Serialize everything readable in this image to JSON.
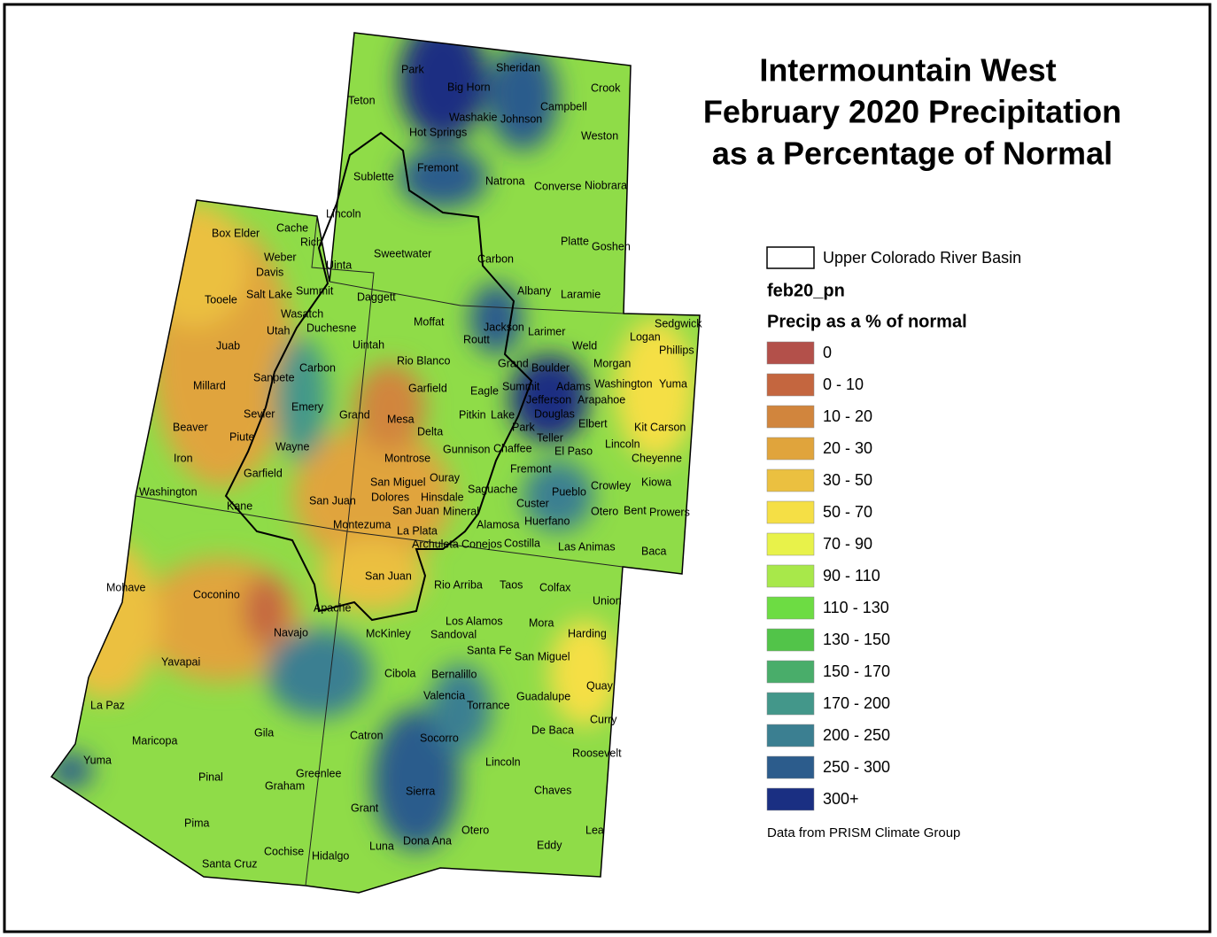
{
  "map": {
    "title": [
      "Intermountain West",
      "February 2020 Precipitation",
      "as a Percentage of Normal"
    ],
    "legend": {
      "basin_label": "Upper Colorado River Basin",
      "field_name": "feb20_pn",
      "heading": "Precip as a % of normal",
      "classes": [
        {
          "label": "0",
          "color": "#b3504a"
        },
        {
          "label": "0 - 10",
          "color": "#c4663f"
        },
        {
          "label": "10 - 20",
          "color": "#d1853d"
        },
        {
          "label": "20 - 30",
          "color": "#e0a43c"
        },
        {
          "label": "30 - 50",
          "color": "#ebc040"
        },
        {
          "label": "50 - 70",
          "color": "#f5df45"
        },
        {
          "label": "70 - 90",
          "color": "#e8f24a"
        },
        {
          "label": "90 - 110",
          "color": "#a8e84a"
        },
        {
          "label": "110 - 130",
          "color": "#6ddc43"
        },
        {
          "label": "130 - 150",
          "color": "#52c449"
        },
        {
          "label": "150 - 170",
          "color": "#49ad6a"
        },
        {
          "label": "170 - 200",
          "color": "#43978a"
        },
        {
          "label": "200 - 250",
          "color": "#3b7f91"
        },
        {
          "label": "250 - 300",
          "color": "#2c5c8c"
        },
        {
          "label": "300+",
          "color": "#1a2f82"
        }
      ]
    },
    "source": "Data from PRISM Climate Group",
    "county_labels": [
      "Park",
      "Big Horn",
      "Sheridan",
      "Crook",
      "Teton",
      "Washakie",
      "Johnson",
      "Campbell",
      "Hot Springs",
      "Weston",
      "Fremont",
      "Sublette",
      "Natrona",
      "Converse",
      "Niobrara",
      "Lincoln",
      "Sweetwater",
      "Carbon",
      "Platte",
      "Goshen",
      "Uinta",
      "Albany",
      "Laramie",
      "Box Elder",
      "Cache",
      "Rich",
      "Weber",
      "Davis",
      "Tooele",
      "Salt Lake",
      "Summit",
      "Daggett",
      "Wasatch",
      "Duchesne",
      "Utah",
      "Uintah",
      "Juab",
      "Millard",
      "Carbon",
      "Sanpete",
      "Emery",
      "Grand",
      "Sevier",
      "Beaver",
      "Piute",
      "Wayne",
      "Iron",
      "Garfield",
      "Washington",
      "Kane",
      "San Juan",
      "Moffat",
      "Jackson",
      "Larimer",
      "Sedgwick",
      "Logan",
      "Phillips",
      "Weld",
      "Routt",
      "Rio Blanco",
      "Grand",
      "Boulder",
      "Morgan",
      "Garfield",
      "Eagle",
      "Summit",
      "Adams",
      "Washington",
      "Yuma",
      "Jefferson",
      "Arapahoe",
      "Mesa",
      "Pitkin",
      "Lake",
      "Douglas",
      "Elbert",
      "Delta",
      "Park",
      "Teller",
      "Kit Carson",
      "Lincoln",
      "Gunnison",
      "Chaffee",
      "El Paso",
      "Montrose",
      "Cheyenne",
      "Fremont",
      "Ouray",
      "San Miguel",
      "Saguache",
      "Crowley",
      "Kiowa",
      "Pueblo",
      "Dolores",
      "Hinsdale",
      "San Juan",
      "Mineral",
      "Custer",
      "Otero",
      "Bent",
      "Prowers",
      "Huerfano",
      "Montezuma",
      "La Plata",
      "Alamosa",
      "Archuleta",
      "Conejos",
      "Costilla",
      "Las Animas",
      "Baca",
      "Mohave",
      "Coconino",
      "Navajo",
      "Apache",
      "Yavapai",
      "La Paz",
      "Maricopa",
      "Gila",
      "Yuma",
      "Greenlee",
      "Pinal",
      "Graham",
      "Pima",
      "Cochise",
      "Santa Cruz",
      "Hidalgo",
      "San Juan",
      "Rio Arriba",
      "Taos",
      "Colfax",
      "Union",
      "McKinley",
      "Los Alamos",
      "Mora",
      "Sandoval",
      "Harding",
      "Santa Fe",
      "San Miguel",
      "Cibola",
      "Bernalillo",
      "Quay",
      "Valencia",
      "Guadalupe",
      "Torrance",
      "Catron",
      "Socorro",
      "De Baca",
      "Curry",
      "Roosevelt",
      "Lincoln",
      "Sierra",
      "Chaves",
      "Grant",
      "Otero",
      "Lea",
      "Luna",
      "Dona Ana",
      "Eddy"
    ]
  }
}
